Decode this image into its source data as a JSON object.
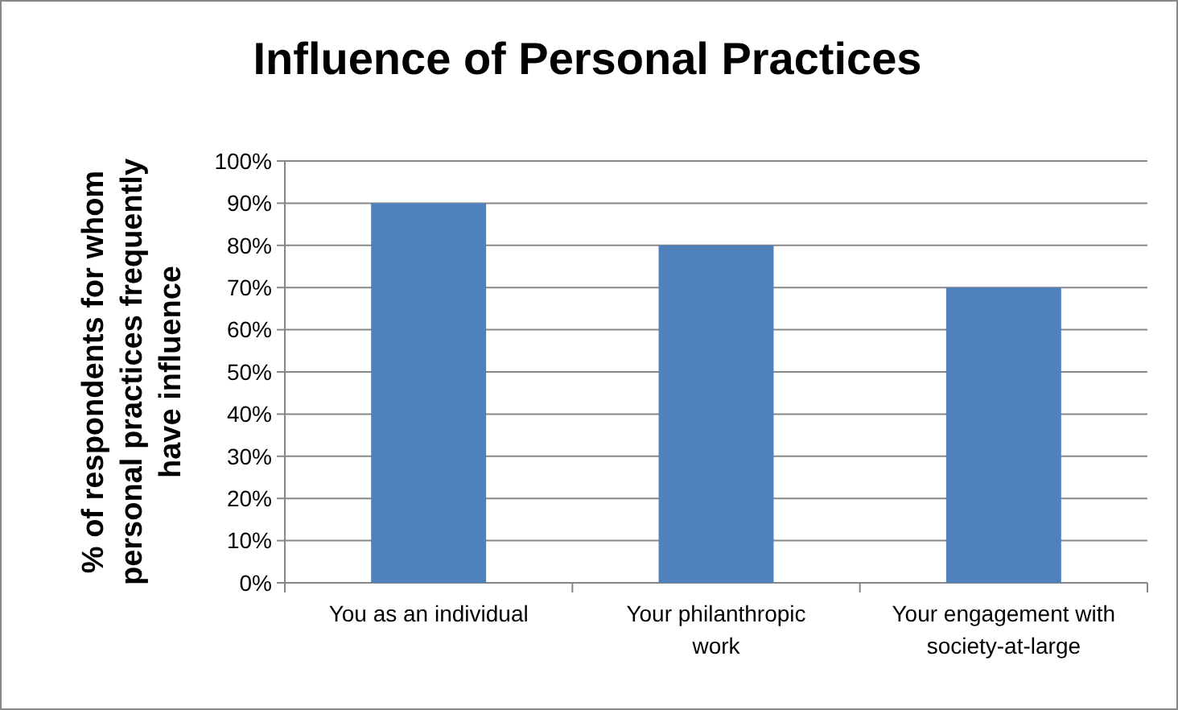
{
  "chart_data": {
    "type": "bar",
    "title": "Influence of Personal Practices",
    "ylabel": "% of respondents for whom personal practices frequently have influence",
    "categories": [
      "You as an individual",
      "Your philanthropic work",
      "Your engagement with society-at-large"
    ],
    "values": [
      90,
      80,
      70
    ],
    "color": "#4f81bd",
    "ylim": [
      0,
      100
    ],
    "yticks": [
      {
        "value": 0,
        "label": "0%"
      },
      {
        "value": 10,
        "label": "10%"
      },
      {
        "value": 20,
        "label": "20%"
      },
      {
        "value": 30,
        "label": "30%"
      },
      {
        "value": 40,
        "label": "40%"
      },
      {
        "value": 50,
        "label": "50%"
      },
      {
        "value": 60,
        "label": "60%"
      },
      {
        "value": 70,
        "label": "70%"
      },
      {
        "value": 80,
        "label": "80%"
      },
      {
        "value": 90,
        "label": "90%"
      },
      {
        "value": 100,
        "label": "100%"
      }
    ],
    "grid": "y"
  }
}
